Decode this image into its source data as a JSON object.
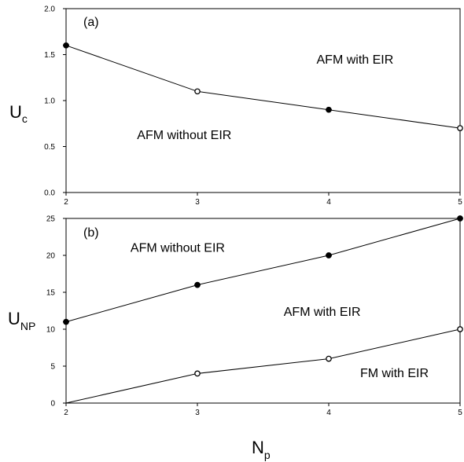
{
  "chart_data": [
    {
      "type": "line",
      "panel_tag": "(a)",
      "ylabel": "U",
      "ylabel_sub": "c",
      "x": [
        2,
        3,
        4,
        5
      ],
      "series": [
        {
          "values": [
            1.6,
            1.1,
            0.9,
            0.7
          ],
          "markers": [
            "filled",
            "open",
            "filled",
            "open"
          ]
        }
      ],
      "xlim": [
        2,
        5
      ],
      "ylim": [
        0.0,
        2.0
      ],
      "xticks": [
        "2",
        "3",
        "4",
        "5"
      ],
      "yticks": [
        "0.0",
        "0.5",
        "1.0",
        "1.5",
        "2.0"
      ],
      "grid": false,
      "annotations": [
        {
          "text": "AFM with EIR",
          "x": 4.2,
          "y": 1.4
        },
        {
          "text": "AFM without EIR",
          "x": 2.9,
          "y": 0.58
        }
      ]
    },
    {
      "type": "line",
      "panel_tag": "(b)",
      "ylabel": "U",
      "ylabel_sub": "NP",
      "xlabel": "N",
      "xlabel_sub": "p",
      "x": [
        2,
        3,
        4,
        5
      ],
      "series": [
        {
          "values": [
            11,
            16,
            20,
            25
          ],
          "markers": [
            "filled",
            "filled",
            "filled",
            "filled"
          ]
        },
        {
          "values": [
            0,
            4,
            6,
            10
          ],
          "markers": [
            "none",
            "open",
            "open",
            "open"
          ]
        }
      ],
      "xlim": [
        2,
        5
      ],
      "ylim": [
        0,
        25
      ],
      "xticks": [
        "2",
        "3",
        "4",
        "5"
      ],
      "yticks": [
        "0",
        "5",
        "10",
        "15",
        "20",
        "25"
      ],
      "grid": false,
      "annotations": [
        {
          "text": "AFM without EIR",
          "x": 2.85,
          "y": 20.5
        },
        {
          "text": "AFM with EIR",
          "x": 3.95,
          "y": 11.8
        },
        {
          "text": "FM with EIR",
          "x": 4.5,
          "y": 3.5
        }
      ]
    }
  ]
}
